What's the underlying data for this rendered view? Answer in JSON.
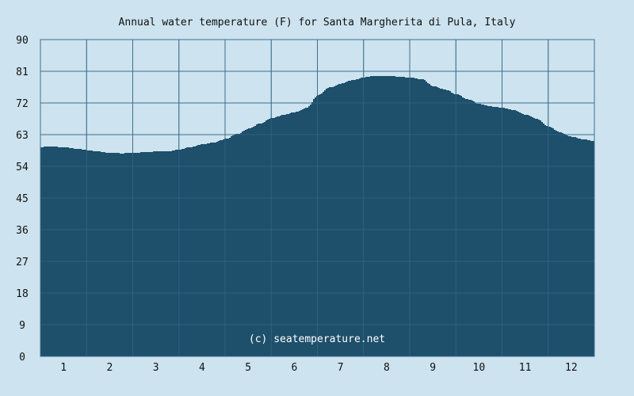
{
  "chart_data": {
    "type": "area",
    "title": "Annual water temperature (F) for Santa Margherita di Pula, Italy",
    "xlabel": "",
    "ylabel": "",
    "ylim": [
      0,
      90
    ],
    "xlim": [
      0.5,
      12.5
    ],
    "y_ticks": [
      "0",
      "9",
      "18",
      "27",
      "36",
      "45",
      "54",
      "63",
      "72",
      "81",
      "90"
    ],
    "x_ticks": [
      "1",
      "2",
      "3",
      "4",
      "5",
      "6",
      "7",
      "8",
      "9",
      "10",
      "11",
      "12"
    ],
    "grid": true,
    "watermark": "(c) seatemperature.net",
    "colors": {
      "background": "#cde3ef",
      "fill": "#1e4f6b",
      "grid": "#3d6f8e",
      "text": "#111111"
    },
    "series": [
      {
        "x": [
          0.5,
          0.75,
          1.0,
          1.25,
          1.5,
          1.75,
          2.0,
          2.25,
          2.5,
          2.75,
          3.0,
          3.25,
          3.5,
          3.75,
          4.0,
          4.25,
          4.5,
          4.75,
          5.0,
          5.25,
          5.5,
          5.75,
          6.0,
          6.25,
          6.5,
          6.75,
          7.0,
          7.25,
          7.5,
          7.75,
          8.0,
          8.25,
          8.5,
          8.75,
          9.0,
          9.25,
          9.5,
          9.75,
          10.0,
          10.25,
          10.5,
          10.75,
          11.0,
          11.25,
          11.5,
          11.75,
          12.0,
          12.25,
          12.5
        ],
        "values": [
          59.5,
          59.6,
          59.4,
          59.0,
          58.6,
          58.2,
          57.8,
          57.7,
          57.8,
          58.0,
          58.2,
          58.3,
          58.8,
          59.5,
          60.3,
          60.8,
          61.8,
          63.2,
          64.7,
          66.2,
          67.7,
          68.6,
          69.4,
          70.6,
          74.2,
          76.4,
          77.5,
          78.5,
          79.3,
          79.7,
          79.7,
          79.5,
          79.2,
          78.7,
          76.8,
          75.8,
          74.5,
          73.0,
          71.7,
          71.0,
          70.6,
          70.0,
          68.6,
          67.4,
          65.2,
          63.6,
          62.4,
          61.6,
          61.2
        ]
      }
    ]
  }
}
